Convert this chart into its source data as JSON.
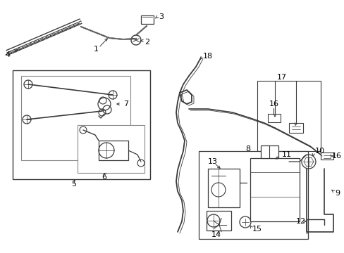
{
  "bg_color": "#ffffff",
  "line_color": "#3a3a3a",
  "text_color": "#000000",
  "figsize": [
    4.89,
    3.6
  ],
  "dpi": 100,
  "xlim": [
    0,
    489
  ],
  "ylim": [
    0,
    360
  ]
}
